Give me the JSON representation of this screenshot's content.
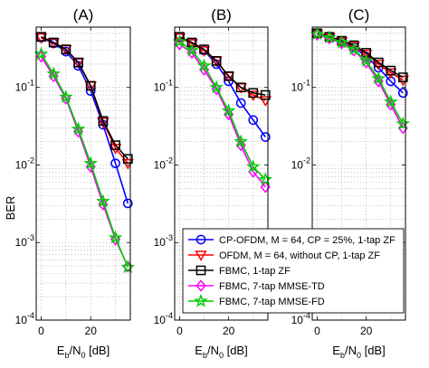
{
  "chart_data": {
    "type": "line",
    "ylabel": "BER",
    "xlabel": {
      "main": "E",
      "sub": "b",
      "mid": "/N",
      "sub2": "0",
      "unit": " [dB]"
    },
    "yscale": "log",
    "ylim": [
      0.0001,
      0.6
    ],
    "xlim": [
      -2,
      36
    ],
    "xticks": [
      0,
      20
    ],
    "yticks": [
      {
        "value": 0.1,
        "base": "10",
        "exp": "-1"
      },
      {
        "value": 0.01,
        "base": "10",
        "exp": "-2"
      },
      {
        "value": 0.001,
        "base": "10",
        "exp": "-3"
      },
      {
        "value": 0.0001,
        "base": "10",
        "exp": "-4"
      }
    ],
    "grid": true,
    "legend": {
      "placement": "bottom-right",
      "entries": [
        "CP-OFDM, M = 64, CP = 25%, 1-tap ZF",
        "OFDM, M = 64, without CP, 1-tap ZF",
        "FBMC, 1-tap ZF",
        "FBMC, 7-tap MMSE-TD",
        "FBMC, 7-tap MMSE-FD"
      ]
    },
    "x": [
      0,
      5,
      10,
      15,
      20,
      25,
      30,
      35
    ],
    "panels": [
      {
        "title": "(A)",
        "series": [
          {
            "name": "CP-OFDM, M = 64, CP = 25%, 1-tap ZF",
            "color": "#0000ff",
            "marker": "circle",
            "values": [
              0.44,
              0.37,
              0.29,
              0.19,
              0.09,
              0.033,
              0.0105,
              0.0032
            ]
          },
          {
            "name": "OFDM, M = 64, without CP, 1-tap ZF",
            "color": "#ff0000",
            "marker": "triangle-down",
            "values": [
              0.44,
              0.38,
              0.31,
              0.21,
              0.105,
              0.036,
              0.0165,
              0.0105
            ]
          },
          {
            "name": "FBMC, 1-tap ZF",
            "color": "#000000",
            "marker": "square",
            "values": [
              0.45,
              0.38,
              0.31,
              0.21,
              0.105,
              0.037,
              0.018,
              0.012
            ]
          },
          {
            "name": "FBMC, 7-tap MMSE-TD",
            "color": "#ff00ff",
            "marker": "diamond",
            "values": [
              0.25,
              0.14,
              0.072,
              0.027,
              0.0095,
              0.0031,
              0.0011,
              0.00049
            ]
          },
          {
            "name": "FBMC, 7-tap MMSE-FD",
            "color": "#00cc00",
            "marker": "star",
            "values": [
              0.27,
              0.15,
              0.075,
              0.029,
              0.0105,
              0.0034,
              0.00115,
              0.00048
            ]
          }
        ]
      },
      {
        "title": "(B)",
        "series": [
          {
            "name": "CP-OFDM, M = 64, CP = 25%, 1-tap ZF",
            "color": "#0000ff",
            "marker": "circle",
            "values": [
              0.44,
              0.37,
              0.3,
              0.2,
              0.12,
              0.063,
              0.038,
              0.023
            ]
          },
          {
            "name": "OFDM, M = 64, without CP, 1-tap ZF",
            "color": "#ff0000",
            "marker": "triangle-down",
            "values": [
              0.44,
              0.37,
              0.3,
              0.22,
              0.14,
              0.1,
              0.08,
              0.068
            ]
          },
          {
            "name": "FBMC, 1-tap ZF",
            "color": "#000000",
            "marker": "square",
            "values": [
              0.45,
              0.38,
              0.31,
              0.22,
              0.14,
              0.1,
              0.085,
              0.08
            ]
          },
          {
            "name": "FBMC, 7-tap MMSE-TD",
            "color": "#ff00ff",
            "marker": "diamond",
            "values": [
              0.36,
              0.28,
              0.17,
              0.095,
              0.045,
              0.018,
              0.0082,
              0.0052
            ]
          },
          {
            "name": "FBMC, 7-tap MMSE-FD",
            "color": "#00cc00",
            "marker": "star",
            "values": [
              0.39,
              0.3,
              0.19,
              0.1,
              0.05,
              0.02,
              0.0095,
              0.0065
            ]
          }
        ]
      },
      {
        "title": "(C)",
        "series": [
          {
            "name": "CP-OFDM, M = 64, CP = 25%, 1-tap ZF",
            "color": "#0000ff",
            "marker": "circle",
            "values": [
              0.49,
              0.44,
              0.39,
              0.33,
              0.25,
              0.18,
              0.12,
              0.085
            ]
          },
          {
            "name": "OFDM, M = 64, without CP, 1-tap ZF",
            "color": "#ff0000",
            "marker": "triangle-down",
            "values": [
              0.49,
              0.44,
              0.39,
              0.34,
              0.27,
              0.2,
              0.155,
              0.125
            ]
          },
          {
            "name": "FBMC, 1-tap ZF",
            "color": "#000000",
            "marker": "square",
            "values": [
              0.5,
              0.45,
              0.4,
              0.35,
              0.28,
              0.21,
              0.165,
              0.135
            ]
          },
          {
            "name": "FBMC, 7-tap MMSE-TD",
            "color": "#ff00ff",
            "marker": "diamond",
            "values": [
              0.48,
              0.43,
              0.37,
              0.3,
              0.21,
              0.12,
              0.06,
              0.03
            ]
          },
          {
            "name": "FBMC, 7-tap MMSE-FD",
            "color": "#00cc00",
            "marker": "star",
            "values": [
              0.49,
              0.44,
              0.38,
              0.31,
              0.22,
              0.13,
              0.065,
              0.034
            ]
          }
        ]
      }
    ]
  }
}
